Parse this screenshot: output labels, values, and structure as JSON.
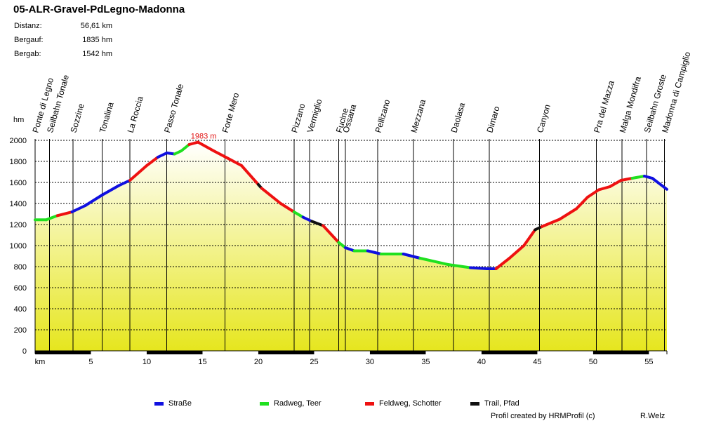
{
  "title": "05-ALR-Gravel-PdLegno-Madonna",
  "stats": [
    {
      "label": "Distanz:",
      "value": "56,61 km"
    },
    {
      "label": "Bergauf:",
      "value": "1835 hm"
    },
    {
      "label": "Bergab:",
      "value": "1542 hm"
    }
  ],
  "chart_data": {
    "type": "area",
    "title": "05-ALR-Gravel-PdLegno-Madonna",
    "xlabel": "km",
    "ylabel": "hm",
    "xlim": [
      0,
      56.61
    ],
    "ylim": [
      0,
      2000
    ],
    "x_ticks": [
      5,
      10,
      15,
      20,
      25,
      30,
      35,
      40,
      45,
      50,
      55
    ],
    "y_ticks": [
      0,
      200,
      400,
      600,
      800,
      1000,
      1200,
      1400,
      1600,
      1800,
      2000
    ],
    "max_label": "1983 m",
    "max_point": {
      "x": 14.6,
      "y": 1983
    },
    "profile": [
      {
        "x": 0.0,
        "y": 1245,
        "surface": "Radweg, Teer"
      },
      {
        "x": 1.0,
        "y": 1245,
        "surface": "Radweg, Teer"
      },
      {
        "x": 2.0,
        "y": 1285,
        "surface": "Radweg, Teer"
      },
      {
        "x": 3.3,
        "y": 1320,
        "surface": "Feldweg, Schotter"
      },
      {
        "x": 4.5,
        "y": 1380,
        "surface": "Straße"
      },
      {
        "x": 6.0,
        "y": 1480,
        "surface": "Straße"
      },
      {
        "x": 7.5,
        "y": 1570,
        "surface": "Straße"
      },
      {
        "x": 8.5,
        "y": 1620,
        "surface": "Straße"
      },
      {
        "x": 10.0,
        "y": 1760,
        "surface": "Feldweg, Schotter"
      },
      {
        "x": 11.0,
        "y": 1840,
        "surface": "Feldweg, Schotter"
      },
      {
        "x": 11.8,
        "y": 1880,
        "surface": "Straße"
      },
      {
        "x": 12.5,
        "y": 1870,
        "surface": "Straße"
      },
      {
        "x": 13.1,
        "y": 1900,
        "surface": "Radweg, Teer"
      },
      {
        "x": 13.8,
        "y": 1960,
        "surface": "Radweg, Teer"
      },
      {
        "x": 14.6,
        "y": 1983,
        "surface": "Feldweg, Schotter"
      },
      {
        "x": 16.0,
        "y": 1900,
        "surface": "Feldweg, Schotter"
      },
      {
        "x": 17.0,
        "y": 1845,
        "surface": "Feldweg, Schotter"
      },
      {
        "x": 18.5,
        "y": 1760,
        "surface": "Feldweg, Schotter"
      },
      {
        "x": 20.0,
        "y": 1580,
        "surface": "Feldweg, Schotter"
      },
      {
        "x": 20.3,
        "y": 1545,
        "surface": "Trail, Pfad"
      },
      {
        "x": 22.0,
        "y": 1400,
        "surface": "Feldweg, Schotter"
      },
      {
        "x": 23.2,
        "y": 1320,
        "surface": "Feldweg, Schotter"
      },
      {
        "x": 24.0,
        "y": 1270,
        "surface": "Radweg, Teer"
      },
      {
        "x": 24.8,
        "y": 1230,
        "surface": "Straße"
      },
      {
        "x": 25.8,
        "y": 1190,
        "surface": "Trail, Pfad"
      },
      {
        "x": 27.2,
        "y": 1030,
        "surface": "Feldweg, Schotter"
      },
      {
        "x": 27.8,
        "y": 980,
        "surface": "Radweg, Teer"
      },
      {
        "x": 28.6,
        "y": 950,
        "surface": "Straße"
      },
      {
        "x": 29.8,
        "y": 950,
        "surface": "Radweg, Teer"
      },
      {
        "x": 31.0,
        "y": 920,
        "surface": "Straße"
      },
      {
        "x": 33.0,
        "y": 920,
        "surface": "Radweg, Teer"
      },
      {
        "x": 34.5,
        "y": 880,
        "surface": "Straße"
      },
      {
        "x": 37.0,
        "y": 820,
        "surface": "Radweg, Teer"
      },
      {
        "x": 39.0,
        "y": 790,
        "surface": "Radweg, Teer"
      },
      {
        "x": 40.5,
        "y": 780,
        "surface": "Straße"
      },
      {
        "x": 41.3,
        "y": 780,
        "surface": "Straße"
      },
      {
        "x": 42.5,
        "y": 880,
        "surface": "Feldweg, Schotter"
      },
      {
        "x": 43.8,
        "y": 1000,
        "surface": "Feldweg, Schotter"
      },
      {
        "x": 44.8,
        "y": 1150,
        "surface": "Feldweg, Schotter"
      },
      {
        "x": 45.4,
        "y": 1180,
        "surface": "Trail, Pfad"
      },
      {
        "x": 47.0,
        "y": 1250,
        "surface": "Feldweg, Schotter"
      },
      {
        "x": 48.5,
        "y": 1350,
        "surface": "Feldweg, Schotter"
      },
      {
        "x": 49.5,
        "y": 1460,
        "surface": "Feldweg, Schotter"
      },
      {
        "x": 50.5,
        "y": 1530,
        "surface": "Feldweg, Schotter"
      },
      {
        "x": 51.5,
        "y": 1560,
        "surface": "Feldweg, Schotter"
      },
      {
        "x": 52.5,
        "y": 1620,
        "surface": "Feldweg, Schotter"
      },
      {
        "x": 53.5,
        "y": 1640,
        "surface": "Feldweg, Schotter"
      },
      {
        "x": 54.6,
        "y": 1660,
        "surface": "Radweg, Teer"
      },
      {
        "x": 55.3,
        "y": 1640,
        "surface": "Straße"
      },
      {
        "x": 56.61,
        "y": 1535,
        "surface": "Straße"
      }
    ],
    "waypoints": [
      {
        "name": "Ponte di Legno",
        "km": 0.0
      },
      {
        "name": "Seilbahn Tonale",
        "km": 1.3
      },
      {
        "name": "Sozzine",
        "km": 3.4
      },
      {
        "name": "Tonalina",
        "km": 6.0
      },
      {
        "name": "La Roccia",
        "km": 8.5
      },
      {
        "name": "Passo Tonale",
        "km": 11.8
      },
      {
        "name": "Forte Mero",
        "km": 17.0
      },
      {
        "name": "Pizzano",
        "km": 23.2
      },
      {
        "name": "Vermiglio",
        "km": 24.6
      },
      {
        "name": "Fucine",
        "km": 27.2
      },
      {
        "name": "Ossana",
        "km": 27.8
      },
      {
        "name": "Pellizano",
        "km": 30.7
      },
      {
        "name": "Mezzana",
        "km": 33.9
      },
      {
        "name": "Daolasa",
        "km": 37.5
      },
      {
        "name": "Dimaro",
        "km": 40.7
      },
      {
        "name": "Canyon",
        "km": 45.2
      },
      {
        "name": "Pra del Mazza",
        "km": 50.3
      },
      {
        "name": "Malga Mondifra",
        "km": 52.6
      },
      {
        "name": "Seilbahn Groste",
        "km": 54.8
      },
      {
        "name": "Madonna di Campiglio",
        "km": 56.4
      }
    ],
    "legend": [
      {
        "label": "Straße",
        "color": "#1010e0"
      },
      {
        "label": "Radweg, Teer",
        "color": "#20e020"
      },
      {
        "label": "Feldweg, Schotter",
        "color": "#ee1111"
      },
      {
        "label": "Trail, Pfad",
        "color": "#101010"
      }
    ]
  },
  "footer": {
    "credit": "Profil created by HRMProfil (c)",
    "author": "R.Welz"
  }
}
